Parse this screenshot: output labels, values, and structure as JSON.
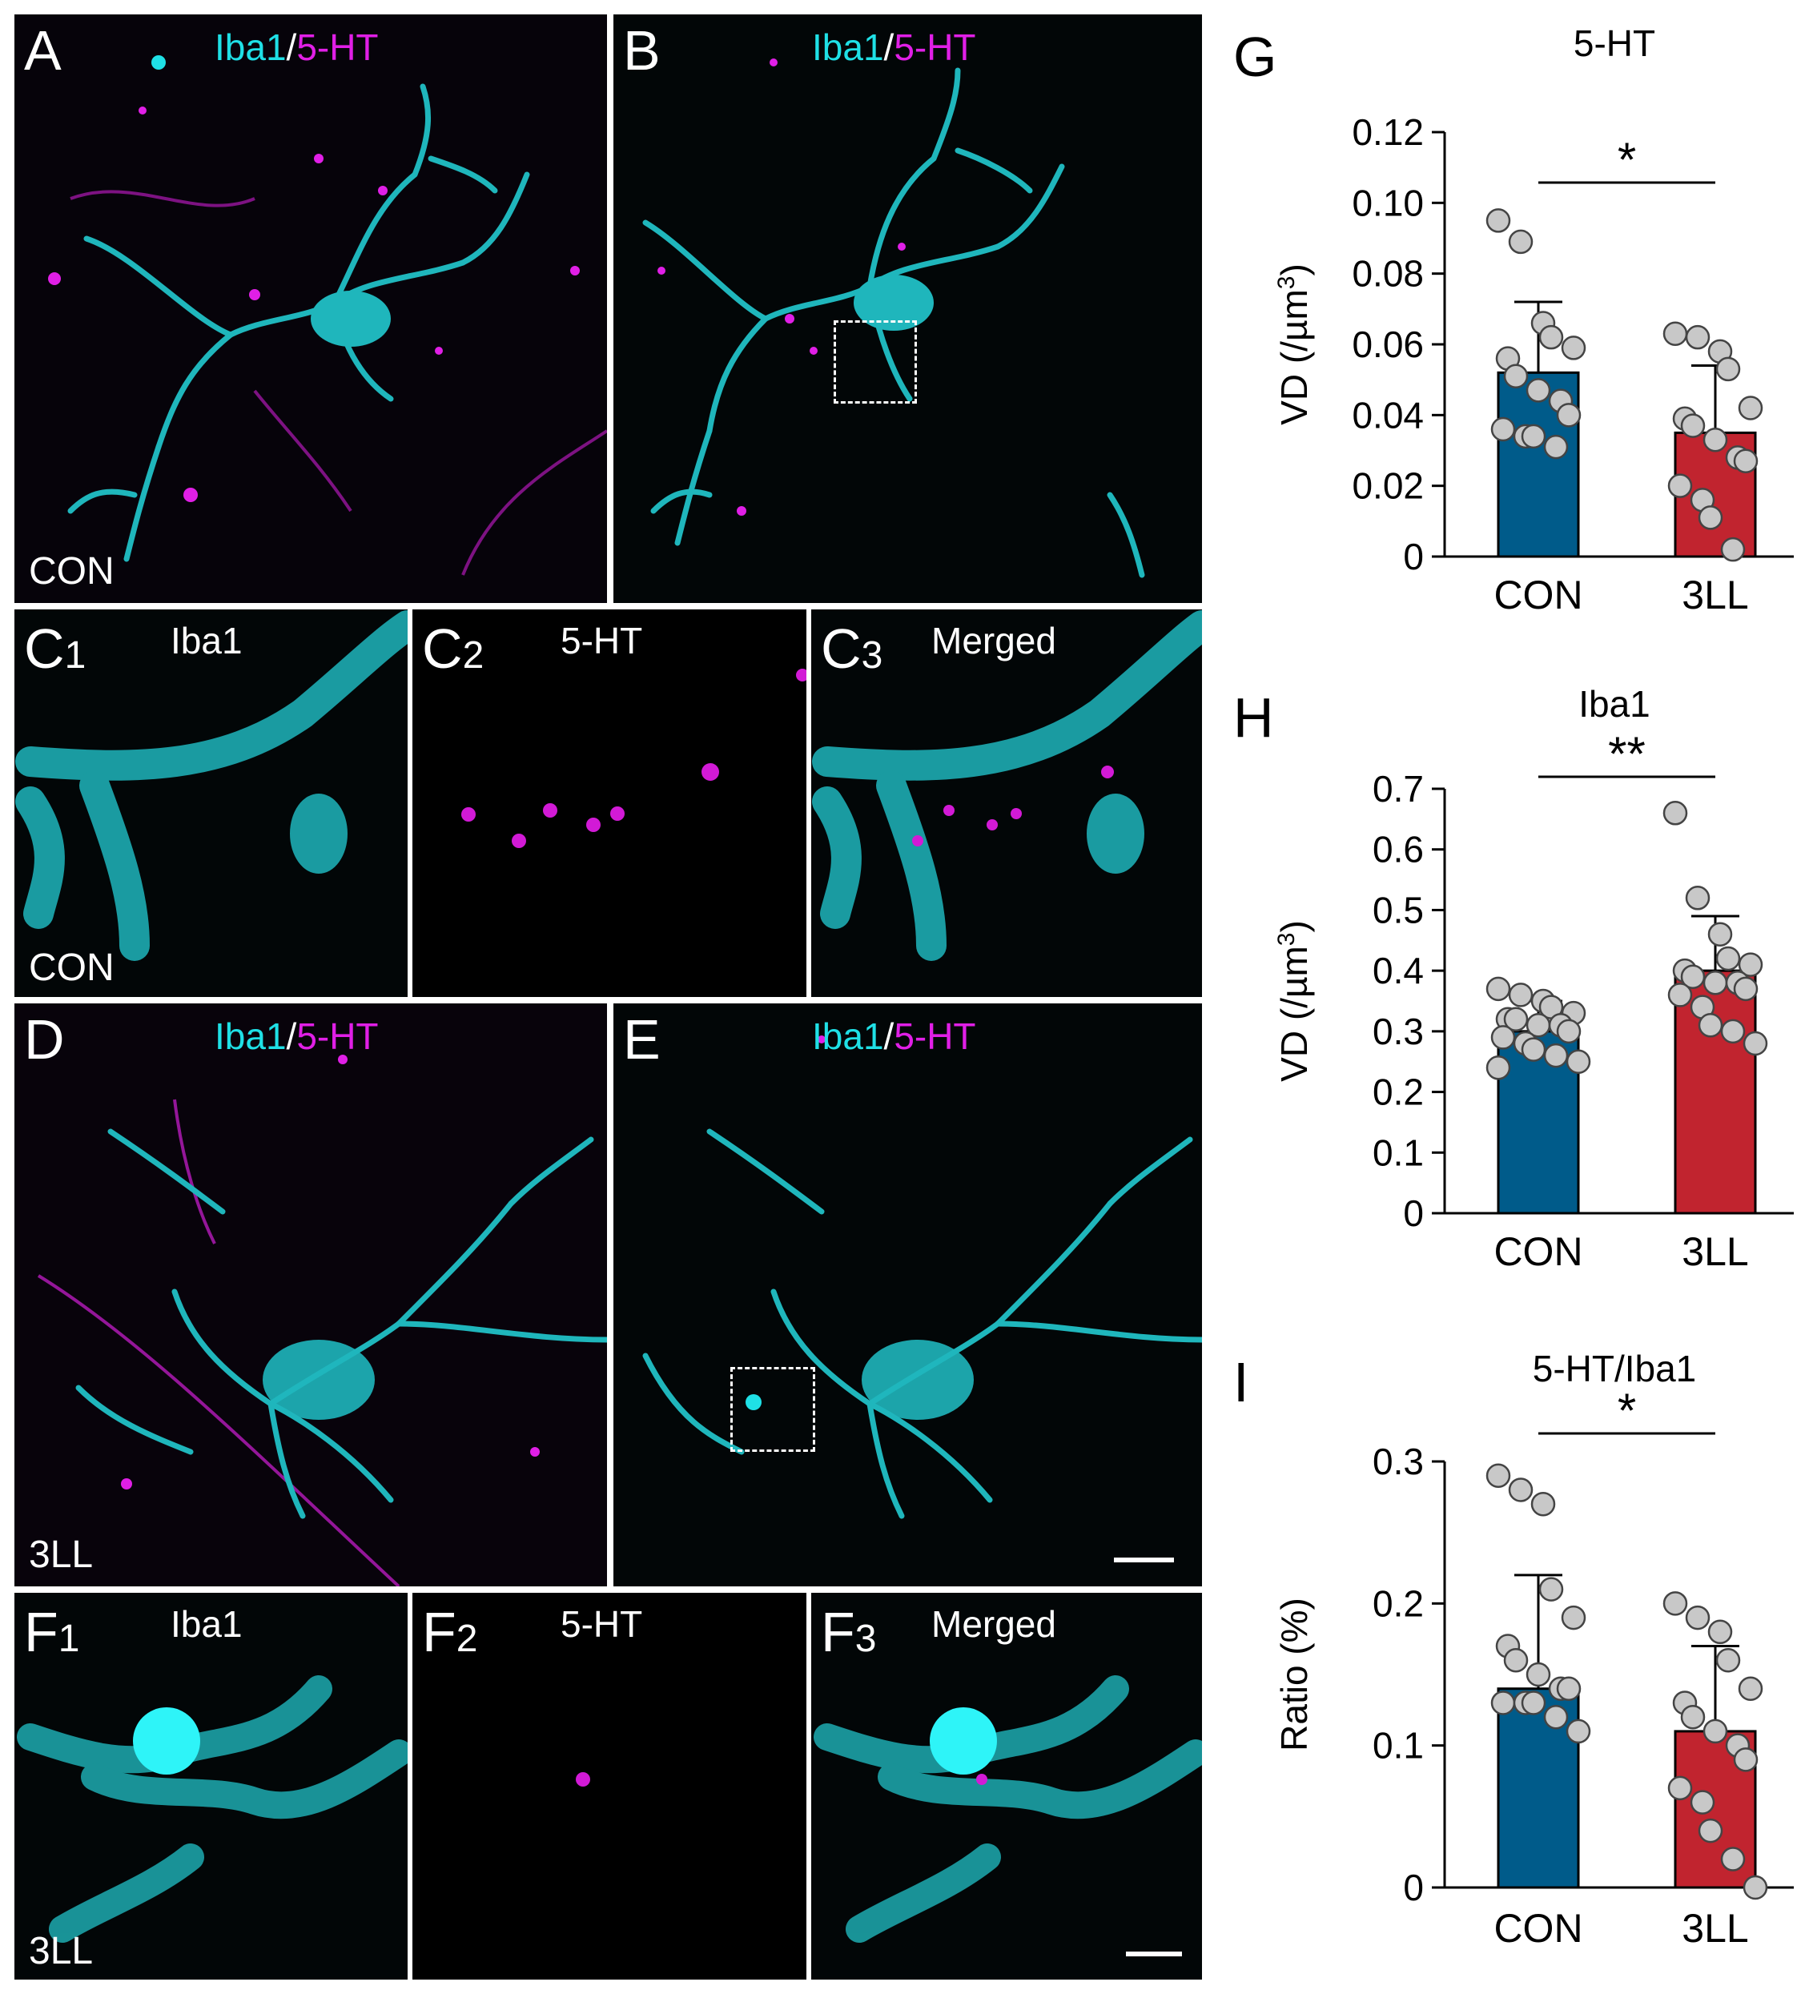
{
  "colors": {
    "con_bar": "#005b8a",
    "tll_bar": "#c1242f",
    "dot_fill": "#c8c8c8",
    "iba1": "#1fe0e6",
    "ht5": "#e01fe6"
  },
  "panels": {
    "A": {
      "label": "A",
      "chan1": "Iba1",
      "sep": "/",
      "chan2": "5-HT",
      "cond": "CON"
    },
    "B": {
      "label": "B",
      "chan1": "Iba1",
      "sep": "/",
      "chan2": "5-HT"
    },
    "C1": {
      "letter": "C",
      "sub": "1",
      "title": "Iba1",
      "cond": "CON"
    },
    "C2": {
      "letter": "C",
      "sub": "2",
      "title": "5-HT"
    },
    "C3": {
      "letter": "C",
      "sub": "3",
      "title": "Merged"
    },
    "D": {
      "label": "D",
      "chan1": "Iba1",
      "sep": "/",
      "chan2": "5-HT",
      "cond": "3LL"
    },
    "E": {
      "label": "E",
      "chan1": "Iba1",
      "sep": "/",
      "chan2": "5-HT"
    },
    "F1": {
      "letter": "F",
      "sub": "1",
      "title": "Iba1",
      "cond": "3LL"
    },
    "F2": {
      "letter": "F",
      "sub": "2",
      "title": "5-HT"
    },
    "F3": {
      "letter": "F",
      "sub": "3",
      "title": "Merged"
    }
  },
  "chart_data": [
    {
      "panel": "G",
      "type": "bar",
      "title": "5-HT",
      "ylabel": "VD (/µm",
      "ylabel_sup": "3",
      "ylabel_end": ")",
      "categories": [
        "CON",
        "3LL"
      ],
      "values": [
        0.052,
        0.035
      ],
      "errors": [
        0.02,
        0.019
      ],
      "ylim": [
        0,
        0.12
      ],
      "yticks": [
        0,
        0.02,
        0.04,
        0.06,
        0.08,
        0.1,
        0.12
      ],
      "ytick_labels": [
        "0",
        "0.02",
        "0.04",
        "0.06",
        "0.08",
        "0.10",
        "0.12"
      ],
      "significance": "*",
      "points": [
        [
          0.095,
          0.089,
          0.066,
          0.062,
          0.059,
          0.056,
          0.051,
          0.047,
          0.044,
          0.04,
          0.036,
          0.034,
          0.034,
          0.031
        ],
        [
          0.063,
          0.062,
          0.058,
          0.053,
          0.042,
          0.039,
          0.037,
          0.033,
          0.028,
          0.027,
          0.02,
          0.016,
          0.011,
          0.002
        ]
      ]
    },
    {
      "panel": "H",
      "type": "bar",
      "title": "Iba1",
      "ylabel": "VD (/µm",
      "ylabel_sup": "3",
      "ylabel_end": ")",
      "categories": [
        "CON",
        "3LL"
      ],
      "values": [
        0.3,
        0.4
      ],
      "errors": [
        0.05,
        0.09
      ],
      "ylim": [
        0,
        0.7
      ],
      "yticks": [
        0,
        0.1,
        0.2,
        0.3,
        0.4,
        0.5,
        0.6,
        0.7
      ],
      "ytick_labels": [
        "0",
        "0.1",
        "0.2",
        "0.3",
        "0.4",
        "0.5",
        "0.6",
        "0.7"
      ],
      "significance": "**",
      "points": [
        [
          0.37,
          0.36,
          0.35,
          0.34,
          0.33,
          0.32,
          0.32,
          0.31,
          0.31,
          0.3,
          0.29,
          0.28,
          0.27,
          0.26,
          0.25,
          0.24
        ],
        [
          0.66,
          0.52,
          0.46,
          0.42,
          0.41,
          0.4,
          0.39,
          0.38,
          0.38,
          0.37,
          0.36,
          0.34,
          0.31,
          0.3,
          0.28
        ]
      ]
    },
    {
      "panel": "I",
      "type": "bar",
      "title": "5-HT/Iba1",
      "ylabel": "Ratio (%)",
      "ylabel_sup": "",
      "ylabel_end": "",
      "categories": [
        "CON",
        "3LL"
      ],
      "values": [
        0.14,
        0.11
      ],
      "errors": [
        0.08,
        0.06
      ],
      "ylim": [
        0,
        0.3
      ],
      "yticks": [
        0,
        0.1,
        0.2,
        0.3
      ],
      "ytick_labels": [
        "0",
        "0.1",
        "0.2",
        "0.3"
      ],
      "significance": "*",
      "points": [
        [
          0.29,
          0.28,
          0.27,
          0.21,
          0.19,
          0.17,
          0.16,
          0.15,
          0.14,
          0.14,
          0.13,
          0.13,
          0.13,
          0.12,
          0.11
        ],
        [
          0.2,
          0.19,
          0.18,
          0.16,
          0.14,
          0.13,
          0.12,
          0.11,
          0.1,
          0.09,
          0.07,
          0.06,
          0.04,
          0.02,
          0.0
        ]
      ]
    }
  ]
}
